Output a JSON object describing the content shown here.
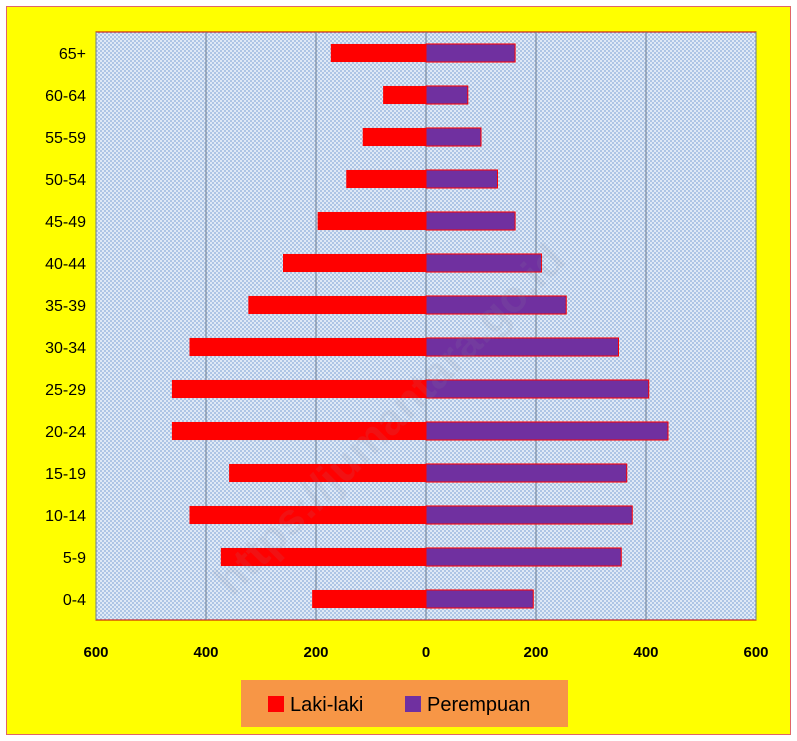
{
  "chart_data": {
    "type": "bar",
    "orientation": "horizontal",
    "layout": "population-pyramid",
    "categories": [
      "0-4",
      "5-9",
      "10-14",
      "15-19",
      "20-24",
      "25-29",
      "30-34",
      "35-39",
      "40-44",
      "45-49",
      "50-54",
      "55-59",
      "60-64",
      "65+"
    ],
    "series": [
      {
        "name": "Laki-laki",
        "color": "#ff0000",
        "side": "left",
        "values": [
          207,
          373,
          430,
          358,
          462,
          462,
          430,
          323,
          260,
          197,
          145,
          115,
          78,
          173
        ]
      },
      {
        "name": "Perempuan",
        "color": "#7030a0",
        "side": "right",
        "values": [
          195,
          355,
          375,
          365,
          440,
          405,
          350,
          255,
          210,
          162,
          130,
          100,
          76,
          162
        ]
      }
    ],
    "xticks": [
      "600",
      "400",
      "200",
      "0",
      "200",
      "400",
      "600"
    ],
    "xlim": [
      -600,
      600
    ],
    "grid": "vertical",
    "legend_position": "bottom",
    "colors": {
      "background": "#ffff00",
      "plot_area": "#aec5e5",
      "legend_box": "#f79646",
      "gridline": "#6b7a8f",
      "frame": "#e06666"
    }
  },
  "watermark": "https://jumantara.go.id"
}
